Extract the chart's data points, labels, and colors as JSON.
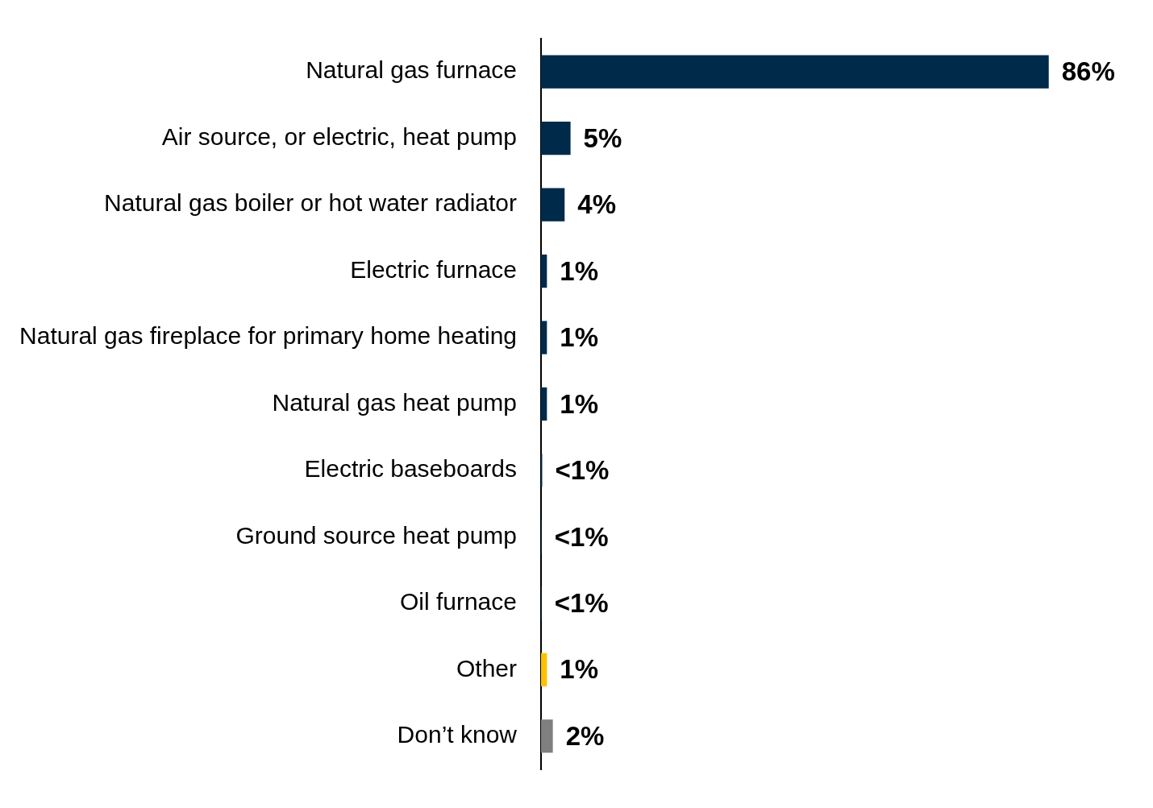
{
  "chart_data": {
    "type": "bar",
    "orientation": "horizontal",
    "categories": [
      "Natural gas furnace",
      "Air source, or electric, heat pump",
      "Natural gas boiler or hot water radiator",
      "Electric furnace",
      "Natural gas fireplace for primary home heating",
      "Natural gas heat pump",
      "Electric baseboards",
      "Ground source heat pump",
      "Oil furnace",
      "Other",
      "Don’t know"
    ],
    "values": [
      86,
      5,
      4,
      1,
      1,
      1,
      0.2,
      0.1,
      0.1,
      1,
      2
    ],
    "colors": [
      "#002a4a",
      "#002a4a",
      "#002a4a",
      "#002a4a",
      "#002a4a",
      "#002a4a",
      "#002a4a",
      "#002a4a",
      "#002a4a",
      "#ffc000",
      "#7f7f7f"
    ],
    "value_labels": [
      "86%",
      "5%",
      "4%",
      "1%",
      "1%",
      "1%",
      "<1%",
      "<1%",
      "<1%",
      "1%",
      "2%"
    ],
    "tick_labels": "y"
  }
}
